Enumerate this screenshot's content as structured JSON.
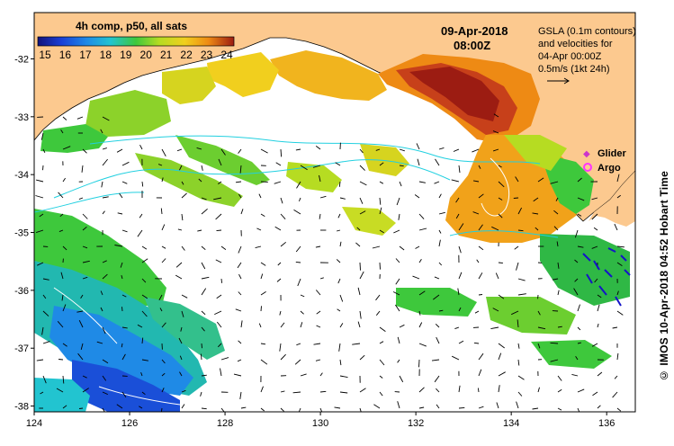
{
  "colorbar": {
    "title": "4h comp, p50, all sats",
    "ticks": [
      "15",
      "16",
      "17",
      "18",
      "19",
      "20",
      "21",
      "22",
      "23",
      "24"
    ]
  },
  "header": {
    "date": "09-Apr-2018",
    "time": "08:00Z"
  },
  "gsla_legend": {
    "line1": "GSLA (0.1m contours)",
    "line2": "and velocities for",
    "line3": "04-Apr 00:00Z",
    "line4": "0.5m/s (1kt 24h)"
  },
  "markers": {
    "glider_label": "Glider",
    "argo_label": "Argo",
    "glider_color": "#cc33cc",
    "argo_color": "#ff33ff"
  },
  "axes": {
    "x_ticks": [
      "124",
      "126",
      "128",
      "130",
      "132",
      "134",
      "136"
    ],
    "y_ticks": [
      "-32",
      "-33",
      "-34",
      "-35",
      "-36",
      "-37",
      "-38"
    ],
    "xlim": [
      124,
      136.6
    ],
    "ylim": [
      -38.1,
      -31.2
    ]
  },
  "credit": "© IMOS 10-Apr-2018 04:52 Hobart Time",
  "colors": {
    "land": "#fcc98f",
    "cool": "#1a4fd8",
    "warm": "#a8231a"
  }
}
